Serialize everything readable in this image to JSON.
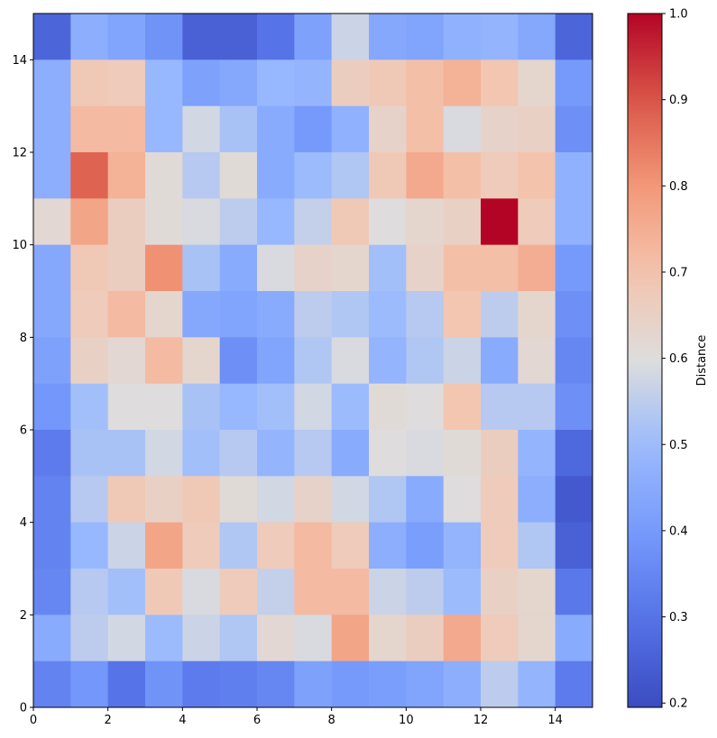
{
  "chart_data": {
    "type": "heatmap",
    "title": "",
    "xlabel": "",
    "ylabel": "",
    "xlim": [
      0,
      15
    ],
    "ylim": [
      0,
      15
    ],
    "x_ticks": [
      0,
      2,
      4,
      6,
      8,
      10,
      12,
      14
    ],
    "y_ticks": [
      0,
      2,
      4,
      6,
      8,
      10,
      12,
      14
    ],
    "colormap": "coolwarm",
    "colorbar": {
      "label": "Distance",
      "min": 0.195,
      "max": 1.0,
      "ticks": [
        0.2,
        0.3,
        0.4,
        0.5,
        0.6,
        0.7,
        0.8,
        0.9,
        1.0
      ],
      "tick_labels": [
        "0.2",
        "0.3",
        "0.4",
        "0.5",
        "0.6",
        "0.7",
        "0.8",
        "0.9",
        "1.0"
      ]
    },
    "rows_top_to_bottom": [
      [
        0.26,
        0.46,
        0.43,
        0.38,
        0.25,
        0.25,
        0.3,
        0.42,
        0.57,
        0.44,
        0.43,
        0.47,
        0.48,
        0.44,
        0.26
      ],
      [
        0.46,
        0.68,
        0.67,
        0.49,
        0.42,
        0.44,
        0.49,
        0.48,
        0.66,
        0.68,
        0.71,
        0.74,
        0.69,
        0.63,
        0.4
      ],
      [
        0.46,
        0.72,
        0.72,
        0.49,
        0.58,
        0.52,
        0.45,
        0.4,
        0.47,
        0.64,
        0.71,
        0.59,
        0.64,
        0.65,
        0.37
      ],
      [
        0.46,
        0.88,
        0.74,
        0.61,
        0.54,
        0.61,
        0.45,
        0.5,
        0.53,
        0.68,
        0.76,
        0.71,
        0.67,
        0.7,
        0.47
      ],
      [
        0.62,
        0.77,
        0.66,
        0.61,
        0.59,
        0.55,
        0.49,
        0.56,
        0.68,
        0.6,
        0.63,
        0.65,
        1.0,
        0.67,
        0.47
      ],
      [
        0.44,
        0.68,
        0.66,
        0.81,
        0.52,
        0.45,
        0.59,
        0.64,
        0.63,
        0.51,
        0.64,
        0.71,
        0.71,
        0.75,
        0.4
      ],
      [
        0.44,
        0.67,
        0.72,
        0.63,
        0.44,
        0.43,
        0.45,
        0.55,
        0.53,
        0.5,
        0.54,
        0.69,
        0.55,
        0.63,
        0.37
      ],
      [
        0.42,
        0.65,
        0.62,
        0.72,
        0.63,
        0.37,
        0.43,
        0.53,
        0.59,
        0.48,
        0.53,
        0.57,
        0.45,
        0.62,
        0.35
      ],
      [
        0.39,
        0.51,
        0.6,
        0.6,
        0.52,
        0.49,
        0.51,
        0.58,
        0.5,
        0.61,
        0.6,
        0.69,
        0.54,
        0.54,
        0.37
      ],
      [
        0.32,
        0.52,
        0.52,
        0.58,
        0.51,
        0.54,
        0.48,
        0.54,
        0.45,
        0.6,
        0.59,
        0.61,
        0.66,
        0.48,
        0.27
      ],
      [
        0.34,
        0.54,
        0.68,
        0.65,
        0.68,
        0.61,
        0.58,
        0.64,
        0.58,
        0.53,
        0.45,
        0.6,
        0.67,
        0.46,
        0.23
      ],
      [
        0.34,
        0.49,
        0.57,
        0.77,
        0.67,
        0.53,
        0.67,
        0.72,
        0.67,
        0.46,
        0.41,
        0.48,
        0.67,
        0.53,
        0.25
      ],
      [
        0.35,
        0.54,
        0.51,
        0.68,
        0.59,
        0.67,
        0.56,
        0.72,
        0.72,
        0.57,
        0.55,
        0.5,
        0.65,
        0.63,
        0.31
      ],
      [
        0.45,
        0.55,
        0.58,
        0.5,
        0.57,
        0.53,
        0.62,
        0.59,
        0.77,
        0.63,
        0.66,
        0.76,
        0.67,
        0.63,
        0.45
      ],
      [
        0.34,
        0.39,
        0.3,
        0.38,
        0.32,
        0.33,
        0.35,
        0.42,
        0.4,
        0.41,
        0.43,
        0.46,
        0.55,
        0.48,
        0.32
      ]
    ]
  }
}
